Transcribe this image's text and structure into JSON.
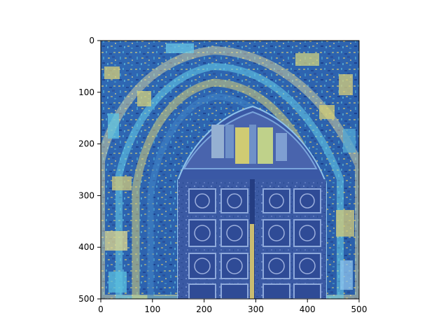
{
  "figure": {
    "image_description_icon": "arched-wooden-door-photo-icon",
    "colormap_note": "false-color",
    "axes": {
      "x_ticks": [
        "0",
        "100",
        "200",
        "300",
        "400",
        "500"
      ],
      "y_ticks": [
        "0",
        "100",
        "200",
        "300",
        "400",
        "500"
      ],
      "xlim": [
        0,
        500
      ],
      "ylim": [
        500,
        0
      ]
    },
    "colors": {
      "deep_blue": "#1f3f8f",
      "mid_blue": "#3f63b8",
      "cyan": "#3fb0d8",
      "yellow": "#d9cf7a",
      "door_blue": "#3e559c"
    }
  }
}
